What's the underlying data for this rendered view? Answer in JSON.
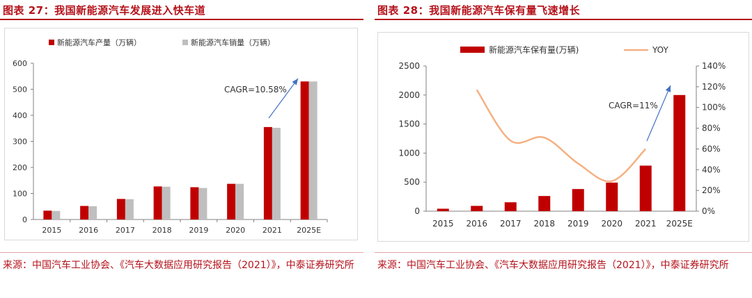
{
  "colors": {
    "accent": "#b5121b",
    "bar_red": "#c00000",
    "bar_gray": "#bfbfbf",
    "line_orange": "#f4b183",
    "arrow": "#4472c4"
  },
  "chart_data": [
    {
      "type": "bar",
      "title": "图表 27：我国新能源汽车发展进入快车道",
      "categories": [
        "2015",
        "2016",
        "2017",
        "2018",
        "2019",
        "2020",
        "2021",
        "2025E"
      ],
      "series": [
        {
          "name": "新能源汽车产量（万辆）",
          "values": [
            34,
            52,
            79,
            127,
            124,
            137,
            355,
            530
          ]
        },
        {
          "name": "新能源汽车销量（万辆）",
          "values": [
            33,
            51,
            78,
            126,
            121,
            137,
            352,
            530
          ]
        }
      ],
      "ylim": [
        0,
        600
      ],
      "yticks": [
        "0",
        "100",
        "200",
        "300",
        "400",
        "500",
        "600"
      ],
      "annotation": "CAGR=10.58%",
      "legend": "top-left",
      "grid": false,
      "source": "来源：中国汽车工业协会、《汽车大数据应用研究报告（2021）》，中泰证券研究所"
    },
    {
      "type": "bar",
      "title": "图表 28：我国新能源汽车保有量飞速增长",
      "categories": [
        "2015",
        "2016",
        "2017",
        "2018",
        "2019",
        "2020",
        "2021",
        "2025E"
      ],
      "series": [
        {
          "name": "新能源汽车保有量(万辆)",
          "type": "bar",
          "axis": "left",
          "values": [
            42,
            91,
            153,
            261,
            381,
            492,
            784,
            2000
          ]
        },
        {
          "name": "YOY",
          "type": "line",
          "axis": "right",
          "x": [
            "2016",
            "2017",
            "2018",
            "2019",
            "2020",
            "2021"
          ],
          "values": [
            1.17,
            0.68,
            0.71,
            0.46,
            0.29,
            0.6
          ]
        }
      ],
      "ylim": [
        0,
        2500
      ],
      "yticks": [
        "0",
        "500",
        "1000",
        "1500",
        "2000",
        "2500"
      ],
      "y2lim": [
        0,
        1.4
      ],
      "y2ticks": [
        "0%",
        "20%",
        "40%",
        "60%",
        "80%",
        "100%",
        "120%",
        "140%"
      ],
      "annotation": "CAGR=11%",
      "legend": "top-left",
      "grid": false,
      "source": "来源：中国汽车工业协会、《汽车大数据应用研究报告（2021）》，中泰证券研究所"
    }
  ]
}
